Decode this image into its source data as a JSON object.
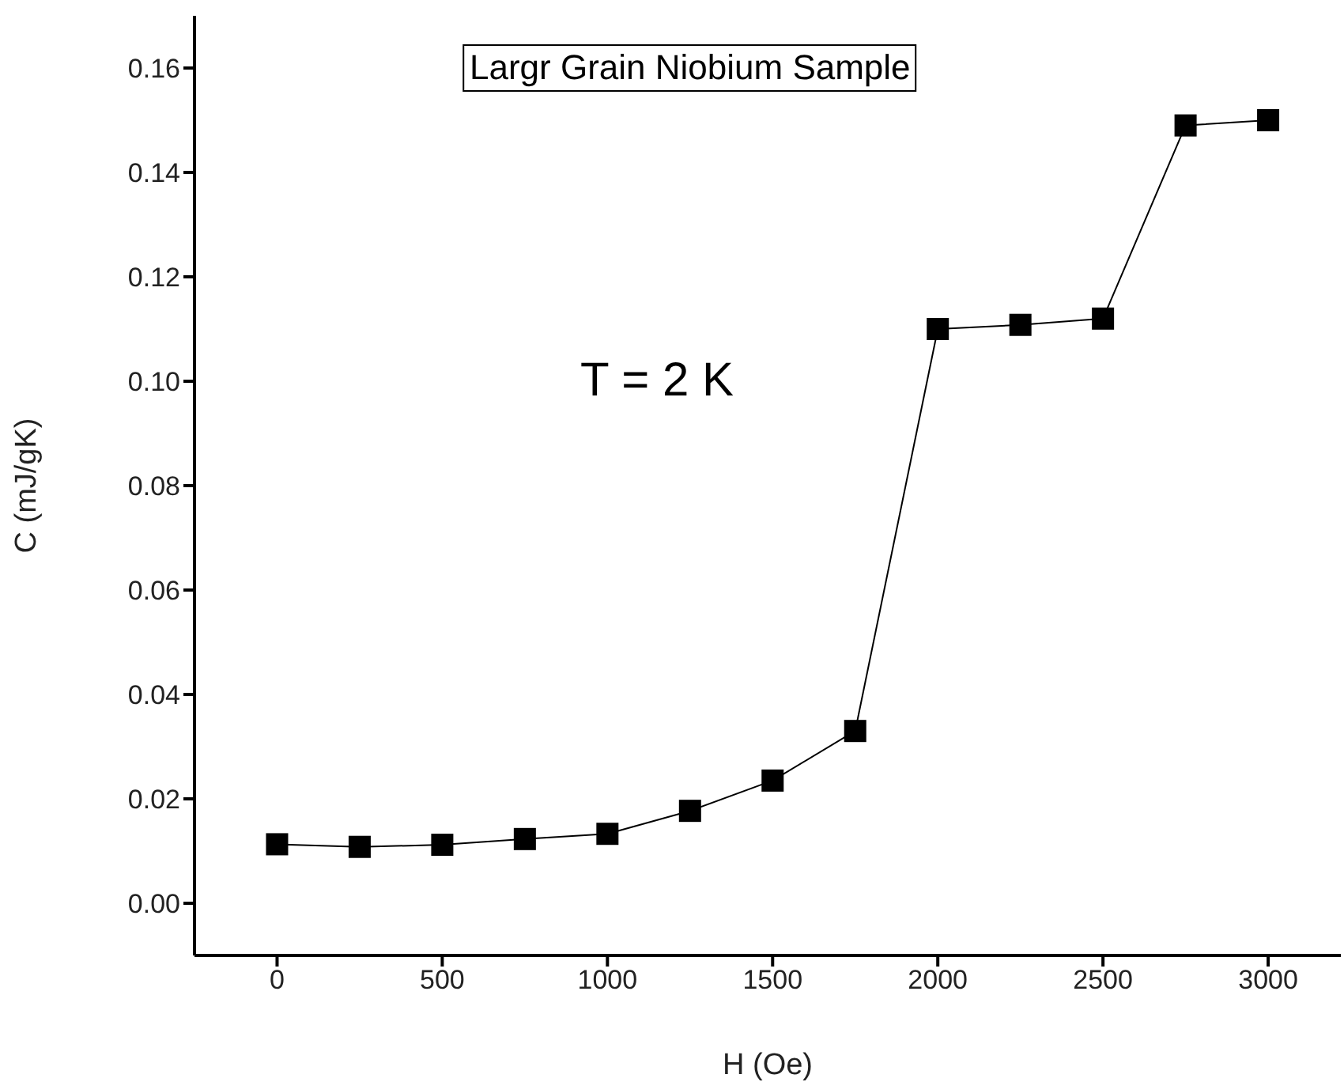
{
  "chart_data": {
    "type": "line",
    "xlabel": "H (Oe)",
    "ylabel": "C (mJ/gK)",
    "annotations": [
      "Largr Grain Niobium Sample",
      "T = 2 K"
    ],
    "x": [
      0,
      250,
      500,
      750,
      1000,
      1250,
      1500,
      1750,
      2000,
      2250,
      2500,
      2750,
      3000
    ],
    "series": [
      {
        "color": "#000000",
        "values": [
          0.0113,
          0.0108,
          0.0112,
          0.0123,
          0.0133,
          0.0177,
          0.0235,
          0.033,
          0.11,
          0.1108,
          0.112,
          0.149,
          0.15
        ]
      }
    ],
    "xlim": [
      -250,
      3220
    ],
    "xticks": [
      0,
      500,
      1000,
      1500,
      2000,
      2500,
      3000
    ],
    "ylim": [
      -0.01,
      0.17
    ],
    "yticks": [
      {
        "value": 0,
        "label": "0.00"
      },
      {
        "value": 0.02,
        "label": "0.02"
      },
      {
        "value": 0.04,
        "label": "0.04"
      },
      {
        "value": 0.06,
        "label": "0.06"
      },
      {
        "value": 0.08,
        "label": "0.08"
      },
      {
        "value": 0.1,
        "label": "0.10"
      },
      {
        "value": 0.12,
        "label": "0.12"
      },
      {
        "value": 0.14,
        "label": "0.14"
      },
      {
        "value": 0.16,
        "label": "0.16"
      }
    ],
    "grid": false,
    "legend": false,
    "marker": "square",
    "line_style": "solid"
  }
}
